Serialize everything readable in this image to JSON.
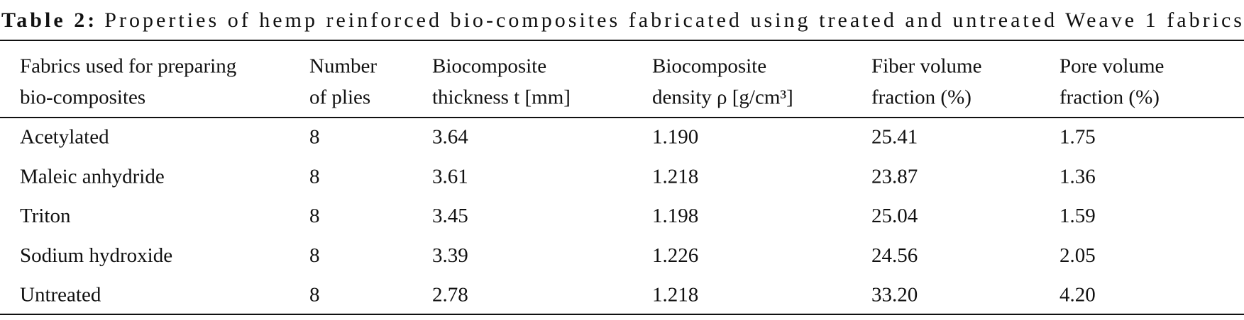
{
  "caption": {
    "label": "Table 2:",
    "text": "Properties of hemp reinforced bio-composites fabricated using treated and untreated Weave 1 fabrics"
  },
  "table": {
    "header": [
      [
        "Fabrics used for preparing",
        "bio-composites"
      ],
      [
        "Number",
        "of plies"
      ],
      [
        "Biocomposite",
        "thickness t [mm]"
      ],
      [
        "Biocomposite",
        "density ρ [g/cm³]"
      ],
      [
        "Fiber volume",
        "fraction (%)"
      ],
      [
        "Pore volume",
        "fraction (%)"
      ]
    ],
    "rows": [
      [
        "Acetylated",
        "8",
        "3.64",
        "1.190",
        "25.41",
        "1.75"
      ],
      [
        "Maleic anhydride",
        "8",
        "3.61",
        "1.218",
        "23.87",
        "1.36"
      ],
      [
        "Triton",
        "8",
        "3.45",
        "1.198",
        "25.04",
        "1.59"
      ],
      [
        "Sodium hydroxide",
        "8",
        "3.39",
        "1.226",
        "24.56",
        "2.05"
      ],
      [
        "Untreated",
        "8",
        "2.78",
        "1.218",
        "33.20",
        "4.20"
      ]
    ]
  }
}
